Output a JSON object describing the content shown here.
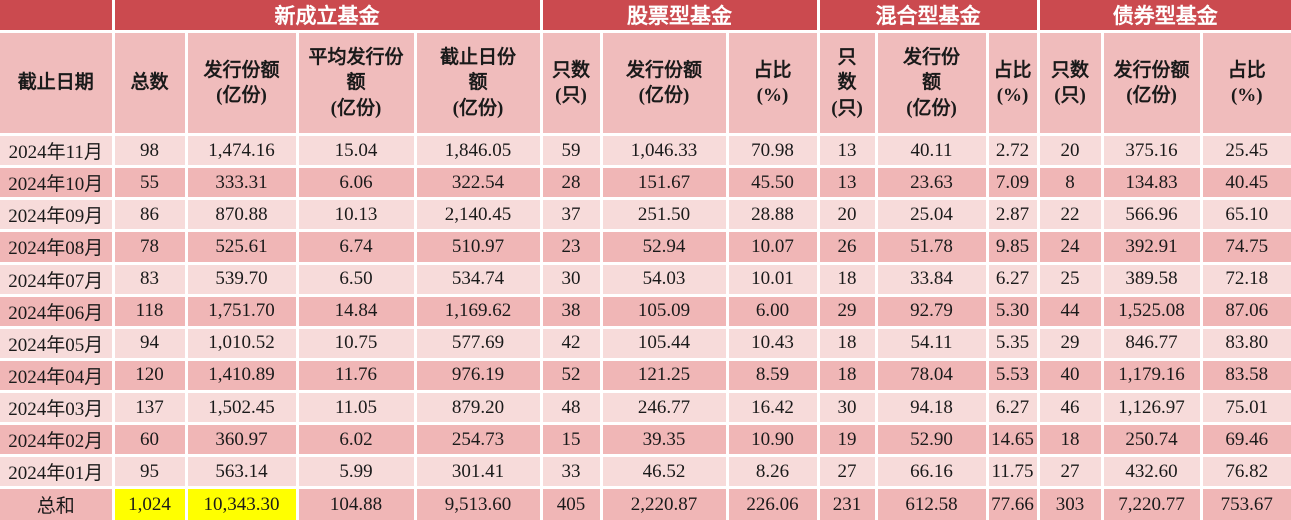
{
  "table": {
    "group_header": [
      {
        "label": "",
        "span": 1
      },
      {
        "label": "新成立基金",
        "span": 4
      },
      {
        "label": "股票型基金",
        "span": 3
      },
      {
        "label": "混合型基金",
        "span": 3
      },
      {
        "label": "债券型基金",
        "span": 3
      }
    ],
    "columns": [
      "截止日期",
      "总数",
      "发行份额\n(亿份)",
      "平均发行份\n额\n(亿份)",
      "截止日份\n额\n(亿份)",
      "只数\n(只)",
      "发行份额\n(亿份)",
      "占比\n(%)",
      "只\n数\n(只)",
      "发行份\n额\n(亿份)",
      "占比\n(%)",
      "只数\n(只)",
      "发行份额\n(亿份)",
      "占比\n(%)"
    ],
    "rows": [
      [
        "2024年11月",
        "98",
        "1,474.16",
        "15.04",
        "1,846.05",
        "59",
        "1,046.33",
        "70.98",
        "13",
        "40.11",
        "2.72",
        "20",
        "375.16",
        "25.45"
      ],
      [
        "2024年10月",
        "55",
        "333.31",
        "6.06",
        "322.54",
        "28",
        "151.67",
        "45.50",
        "13",
        "23.63",
        "7.09",
        "8",
        "134.83",
        "40.45"
      ],
      [
        "2024年09月",
        "86",
        "870.88",
        "10.13",
        "2,140.45",
        "37",
        "251.50",
        "28.88",
        "20",
        "25.04",
        "2.87",
        "22",
        "566.96",
        "65.10"
      ],
      [
        "2024年08月",
        "78",
        "525.61",
        "6.74",
        "510.97",
        "23",
        "52.94",
        "10.07",
        "26",
        "51.78",
        "9.85",
        "24",
        "392.91",
        "74.75"
      ],
      [
        "2024年07月",
        "83",
        "539.70",
        "6.50",
        "534.74",
        "30",
        "54.03",
        "10.01",
        "18",
        "33.84",
        "6.27",
        "25",
        "389.58",
        "72.18"
      ],
      [
        "2024年06月",
        "118",
        "1,751.70",
        "14.84",
        "1,169.62",
        "38",
        "105.09",
        "6.00",
        "29",
        "92.79",
        "5.30",
        "44",
        "1,525.08",
        "87.06"
      ],
      [
        "2024年05月",
        "94",
        "1,010.52",
        "10.75",
        "577.69",
        "42",
        "105.44",
        "10.43",
        "18",
        "54.11",
        "5.35",
        "29",
        "846.77",
        "83.80"
      ],
      [
        "2024年04月",
        "120",
        "1,410.89",
        "11.76",
        "976.19",
        "52",
        "121.25",
        "8.59",
        "18",
        "78.04",
        "5.53",
        "40",
        "1,179.16",
        "83.58"
      ],
      [
        "2024年03月",
        "137",
        "1,502.45",
        "11.05",
        "879.20",
        "48",
        "246.77",
        "16.42",
        "30",
        "94.18",
        "6.27",
        "46",
        "1,126.97",
        "75.01"
      ],
      [
        "2024年02月",
        "60",
        "360.97",
        "6.02",
        "254.73",
        "15",
        "39.35",
        "10.90",
        "19",
        "52.90",
        "14.65",
        "18",
        "250.74",
        "69.46"
      ],
      [
        "2024年01月",
        "95",
        "563.14",
        "5.99",
        "301.41",
        "33",
        "46.52",
        "8.26",
        "27",
        "66.16",
        "11.75",
        "27",
        "432.60",
        "76.82"
      ]
    ],
    "total_row": [
      "总和",
      "1,024",
      "10,343.30",
      "104.88",
      "9,513.60",
      "405",
      "2,220.87",
      "226.06",
      "231",
      "612.58",
      "77.66",
      "303",
      "7,220.77",
      "753.67"
    ],
    "total_highlight_columns": [
      1,
      2
    ],
    "colors": {
      "header_red": "#CB4A4F",
      "header_pink": "#F0BCBC",
      "row_light": "#F7DBDA",
      "row_dark": "#F0B6B6",
      "total_highlight": "#FFFF00",
      "grid": "#FFFFFF",
      "header_text": "#FFFFFF",
      "body_text": "#1A1A1A"
    }
  }
}
